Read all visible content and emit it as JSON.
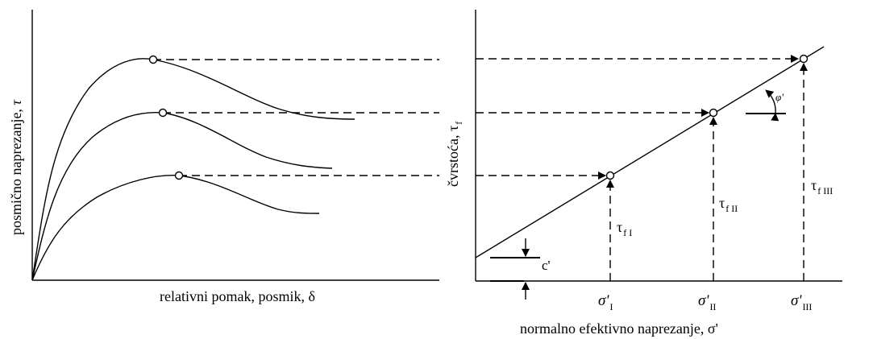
{
  "left_plot": {
    "ylabel": "posmično naprezanje,",
    "ylabel_symbol": "τ",
    "xlabel": "relativni pomak, posmik, δ"
  },
  "right_plot": {
    "ylabel": "čvrstoća,",
    "ylabel_symbol": "τ",
    "ylabel_sub": "f",
    "xlabel": "normalno efektivno naprezanje, σ'",
    "cohesion_label": "c'",
    "angle_label": "φ'",
    "points": [
      {
        "sigma_label": "σ'",
        "sigma_sub": "I",
        "tau_label": "τ",
        "tau_sub": "f I"
      },
      {
        "sigma_label": "σ'",
        "sigma_sub": "II",
        "tau_label": "τ",
        "tau_sub": "f II"
      },
      {
        "sigma_label": "σ'",
        "sigma_sub": "III",
        "tau_label": "τ",
        "tau_sub": "f III"
      }
    ]
  }
}
